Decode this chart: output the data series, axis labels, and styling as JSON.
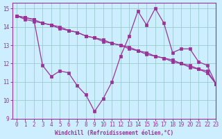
{
  "xlabel": "Windchill (Refroidissement éolien,°C)",
  "xlim": [
    -0.5,
    23
  ],
  "ylim": [
    9,
    15.3
  ],
  "yticks": [
    9,
    10,
    11,
    12,
    13,
    14,
    15
  ],
  "xticks": [
    0,
    1,
    2,
    3,
    4,
    5,
    6,
    7,
    8,
    9,
    10,
    11,
    12,
    13,
    14,
    15,
    16,
    17,
    18,
    19,
    20,
    21,
    22,
    23
  ],
  "bg_color": "#cceeff",
  "line_color": "#993399",
  "grid_color": "#99cccc",
  "line1_x": [
    0,
    1,
    2,
    3,
    4,
    5,
    6,
    7,
    8,
    9,
    10,
    11,
    12,
    13,
    14,
    15,
    16,
    17,
    18,
    19,
    20,
    21,
    22,
    23
  ],
  "line1_y": [
    14.6,
    14.5,
    14.4,
    14.2,
    14.1,
    14.0,
    13.8,
    13.7,
    13.5,
    13.4,
    13.2,
    13.1,
    13.0,
    12.8,
    12.7,
    12.5,
    12.4,
    12.3,
    12.1,
    12.0,
    11.8,
    11.7,
    11.5,
    10.9
  ],
  "line2_x": [
    0,
    1,
    2,
    3,
    4,
    5,
    6,
    7,
    8,
    9,
    10,
    11,
    12,
    13,
    14,
    15,
    16,
    17,
    18,
    19,
    20,
    21,
    22,
    23
  ],
  "line2_y": [
    14.6,
    14.4,
    14.3,
    14.2,
    14.1,
    13.9,
    13.8,
    13.7,
    13.5,
    13.4,
    13.3,
    13.1,
    13.0,
    12.9,
    12.7,
    12.6,
    12.4,
    12.3,
    12.2,
    12.0,
    11.9,
    11.7,
    11.6,
    10.9
  ],
  "line3_x": [
    0,
    1,
    2,
    3,
    4,
    5,
    6,
    7,
    8,
    9,
    10,
    11,
    12,
    13,
    14,
    15,
    16,
    17,
    18,
    19,
    20,
    21,
    22,
    23
  ],
  "line3_y": [
    14.6,
    14.5,
    14.4,
    11.9,
    11.3,
    11.6,
    11.5,
    10.8,
    10.3,
    9.4,
    10.1,
    11.0,
    12.4,
    13.5,
    14.85,
    14.1,
    15.0,
    14.2,
    12.6,
    12.8,
    12.8,
    12.1,
    11.9,
    10.9
  ]
}
